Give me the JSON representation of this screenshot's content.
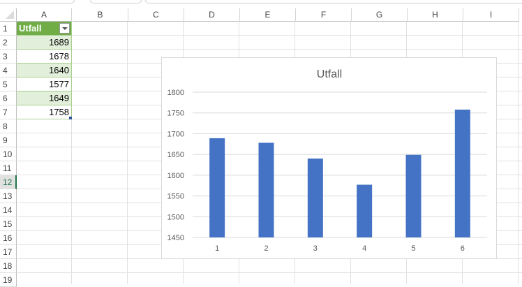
{
  "columns": [
    "A",
    "B",
    "C",
    "D",
    "E",
    "F",
    "G",
    "H",
    "I"
  ],
  "rows": [
    "1",
    "2",
    "3",
    "4",
    "5",
    "6",
    "7",
    "8",
    "9",
    "10",
    "11",
    "12",
    "13",
    "14",
    "15",
    "16",
    "17",
    "18",
    "19"
  ],
  "active_row": "12",
  "table": {
    "header": "Utfall",
    "values": [
      "1689",
      "1678",
      "1640",
      "1577",
      "1649",
      "1758"
    ],
    "header_color": "#70ad47",
    "band_color": "#e2efda"
  },
  "chart_data": {
    "type": "bar",
    "title": "Utfall",
    "categories": [
      "1",
      "2",
      "3",
      "4",
      "5",
      "6"
    ],
    "values": [
      1689,
      1678,
      1640,
      1577,
      1649,
      1758
    ],
    "ylim": [
      1450,
      1800
    ],
    "yticks": [
      "1450",
      "1500",
      "1550",
      "1600",
      "1650",
      "1700",
      "1750",
      "1800"
    ],
    "grid": true,
    "bar_color": "#4472c4"
  }
}
